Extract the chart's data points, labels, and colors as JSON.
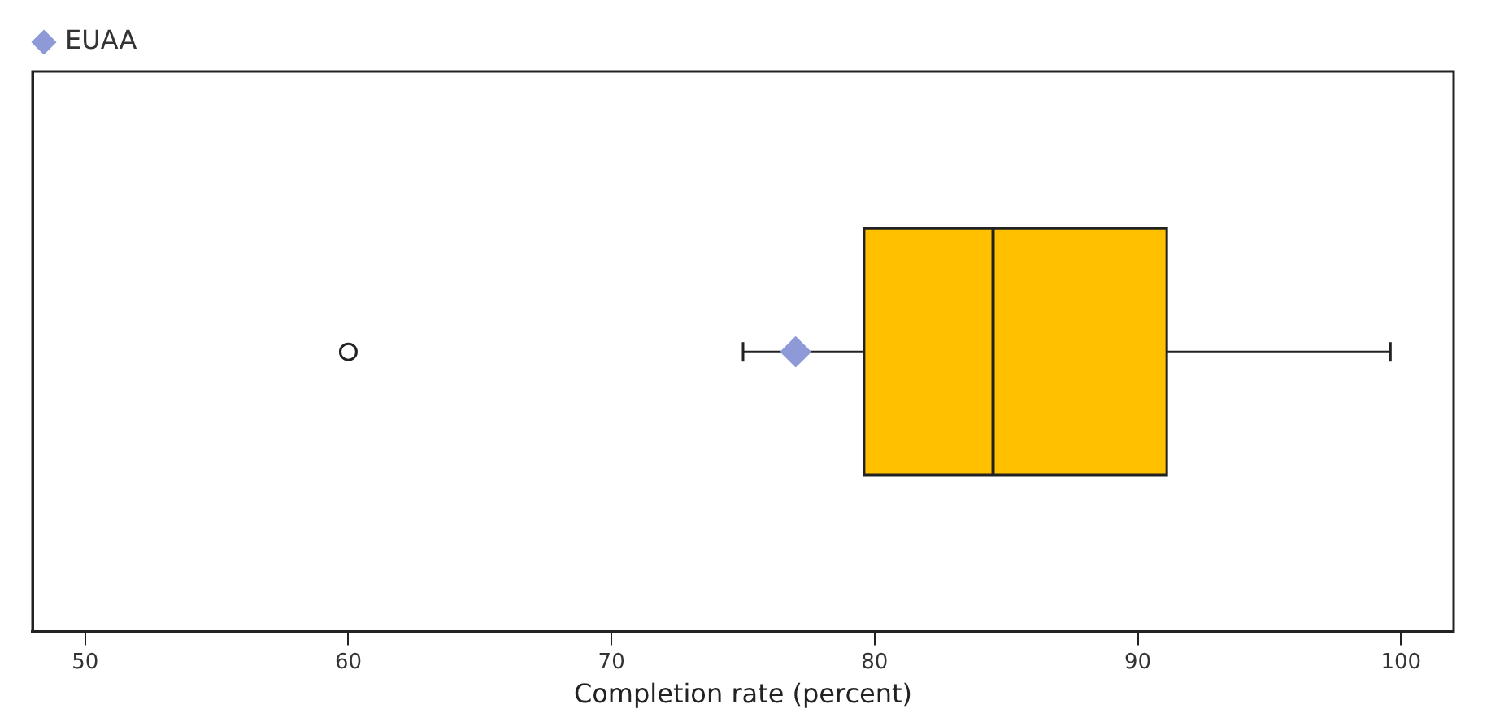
{
  "chart_data": {
    "type": "box",
    "orientation": "horizontal",
    "xlabel": "Completion rate (percent)",
    "categories": [
      null
    ],
    "series": [
      {
        "color": "#ffc000",
        "boxes": [
          {
            "low": 75,
            "q1": 79.6,
            "median": 84.5,
            "q3": 91.1,
            "high": 99.6,
            "outliers": [
              60
            ]
          }
        ]
      },
      {
        "type": "scatter",
        "name": "EUAA",
        "color": "#8e9ad8",
        "values": [
          77
        ],
        "marker": "diamond"
      }
    ],
    "xlim": [
      48,
      102
    ],
    "xticks": [
      50,
      60,
      70,
      80,
      90,
      100
    ],
    "tick_labels": "x",
    "legend": "top left"
  }
}
